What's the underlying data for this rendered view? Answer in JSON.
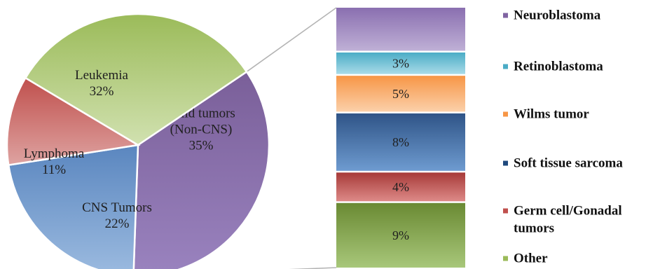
{
  "chart_data": {
    "type": "bar-of-pie",
    "title": "",
    "pie": {
      "slices": [
        {
          "label": "Solid tumors",
          "label_line2": "(Non-CNS)",
          "value": 35,
          "value_text": "35%",
          "color": "#7a5f99",
          "color_light": "#9a83bf"
        },
        {
          "label": "CNS Tumors",
          "value": 22,
          "value_text": "22%",
          "color": "#5a86bf",
          "color_light": "#9cbbe0"
        },
        {
          "label": "Lymphoma",
          "value": 11,
          "value_text": "11%",
          "color": "#c0504d",
          "color_light": "#dea3a1"
        },
        {
          "label": "Leukemia",
          "value": 32,
          "value_text": "32%",
          "color": "#9bbb59",
          "color_light": "#d1e1b0"
        }
      ]
    },
    "bar": {
      "segments": [
        {
          "name": "Neuroblastoma",
          "value": 6,
          "value_text": "",
          "color_top": "#8a6fb0",
          "color_bottom": "#bfb0d6"
        },
        {
          "name": "Retinoblastoma",
          "value": 3,
          "value_text": "3%",
          "color_top": "#4bacc6",
          "color_bottom": "#a9dbe8"
        },
        {
          "name": "Wilms tumor",
          "value": 5,
          "value_text": "5%",
          "color_top": "#f79646",
          "color_bottom": "#fbd0aa"
        },
        {
          "name": "Soft tissue sarcoma",
          "value": 8,
          "value_text": "8%",
          "color_top": "#2f5487",
          "color_bottom": "#6e9bd0"
        },
        {
          "name": "Germ cell/Gonadal",
          "name_line2": "tumors",
          "value": 4,
          "value_text": "4%",
          "color_top": "#a73a38",
          "color_bottom": "#dd8a88"
        },
        {
          "name": "Other",
          "value": 9,
          "value_text": "9%",
          "color_top": "#6a8a33",
          "color_bottom": "#a8c77a"
        }
      ]
    },
    "legend": {
      "position": "right",
      "items": [
        {
          "label": "Neuroblastoma",
          "color": "#8064a2"
        },
        {
          "label": "Retinoblastoma",
          "color": "#4bacc6"
        },
        {
          "label": "Wilms tumor",
          "color": "#f79646"
        },
        {
          "label": "Soft tissue sarcoma",
          "color": "#1f497d"
        },
        {
          "label": "Germ cell/Gonadal",
          "label_line2": "tumors",
          "color": "#c0504d"
        },
        {
          "label": "Other",
          "color": "#9bbb59"
        }
      ]
    }
  }
}
